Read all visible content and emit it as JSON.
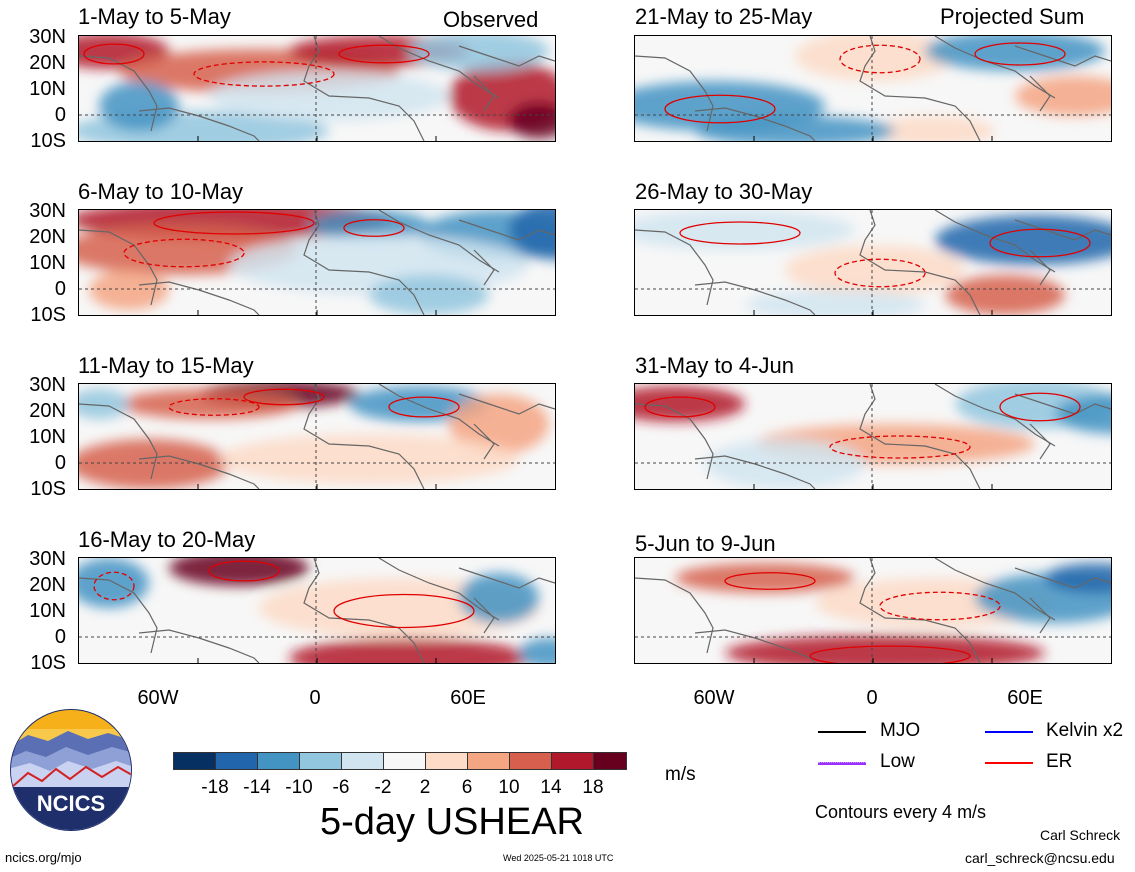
{
  "panels": [
    {
      "title": "1-May to 5-May",
      "corner": "Observed"
    },
    {
      "title": "6-May to 10-May",
      "corner": ""
    },
    {
      "title": "11-May to 15-May",
      "corner": ""
    },
    {
      "title": "16-May to 20-May",
      "corner": ""
    },
    {
      "title": "21-May to 25-May",
      "corner": "Projected Sum"
    },
    {
      "title": "26-May to 30-May",
      "corner": ""
    },
    {
      "title": "31-May to 4-Jun",
      "corner": ""
    },
    {
      "title": "5-Jun to 9-Jun",
      "corner": ""
    }
  ],
  "lat_labels": [
    "30N",
    "20N",
    "10N",
    "0",
    "10S"
  ],
  "lon_labels": [
    "60W",
    "0",
    "60E"
  ],
  "colorbar": {
    "colors": [
      "#053061",
      "#2166ac",
      "#4393c3",
      "#92c5de",
      "#d1e5f0",
      "#f7f7f7",
      "#fddbc7",
      "#f4a582",
      "#d6604d",
      "#b2182b",
      "#67001f"
    ],
    "labels": [
      "-18",
      "-14",
      "-10",
      "-6",
      "-2",
      "2",
      "6",
      "10",
      "14",
      "18"
    ],
    "units": "m/s",
    "title": "5-day USHEAR"
  },
  "legend": {
    "items": [
      {
        "label": "MJO",
        "color": "#000000"
      },
      {
        "label": "Kelvin x2",
        "color": "#0000ff"
      },
      {
        "label": "Low",
        "color": "#9b30ff"
      },
      {
        "label": "ER",
        "color": "#ff0000"
      }
    ],
    "contours_note": "Contours every 4 m/s"
  },
  "footer": {
    "site": "ncics.org/mjo",
    "timestamp": "Wed 2025-05-21 1018 UTC",
    "author": "Carl Schreck",
    "email": "carl_schreck@ncsu.edu"
  },
  "logo": {
    "text": "NCICS"
  }
}
